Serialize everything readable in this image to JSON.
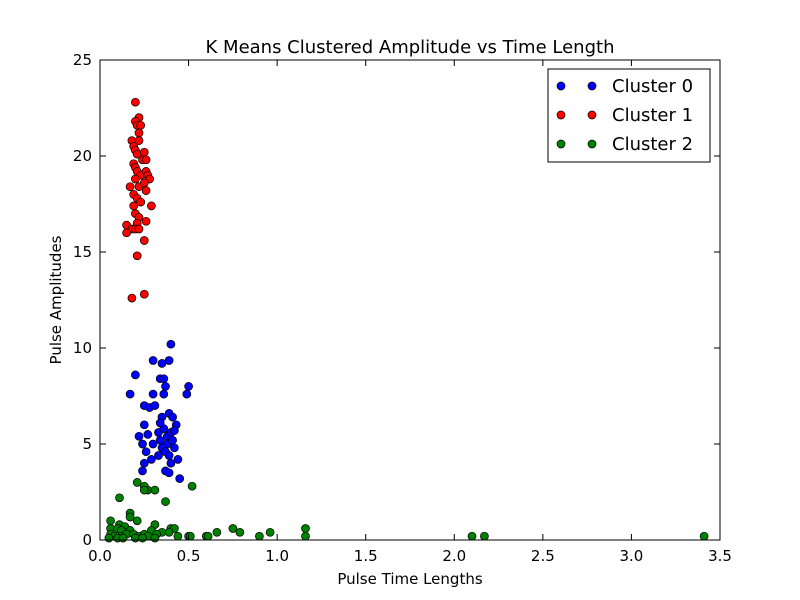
{
  "chart_data": {
    "type": "scatter",
    "title": "K Means Clustered Amplitude vs Time Length",
    "xlabel": "Pulse Time Lengths",
    "ylabel": "Pulse Amplitudes",
    "xlim": [
      0,
      3.5
    ],
    "ylim": [
      0,
      25
    ],
    "xticks": [
      0.0,
      0.5,
      1.0,
      1.5,
      2.0,
      2.5,
      3.0,
      3.5
    ],
    "xtick_labels": [
      "0.0",
      "0.5",
      "1.0",
      "1.5",
      "2.0",
      "2.5",
      "3.0",
      "3.5"
    ],
    "yticks": [
      0,
      5,
      10,
      15,
      20,
      25
    ],
    "ytick_labels": [
      "0",
      "5",
      "10",
      "15",
      "20",
      "25"
    ],
    "grid": false,
    "legend_position": "top-right",
    "series": [
      {
        "name": "Cluster 0",
        "color": "#0000ff",
        "points": [
          [
            0.2,
            8.6
          ],
          [
            0.17,
            7.6
          ],
          [
            0.3,
            9.35
          ],
          [
            0.35,
            9.2
          ],
          [
            0.39,
            9.35
          ],
          [
            0.4,
            10.2
          ],
          [
            0.34,
            8.4
          ],
          [
            0.36,
            8.4
          ],
          [
            0.37,
            8.0
          ],
          [
            0.36,
            7.6
          ],
          [
            0.3,
            7.6
          ],
          [
            0.5,
            8.0
          ],
          [
            0.49,
            7.6
          ],
          [
            0.25,
            7.0
          ],
          [
            0.28,
            6.9
          ],
          [
            0.31,
            7.0
          ],
          [
            0.35,
            6.4
          ],
          [
            0.39,
            6.6
          ],
          [
            0.41,
            6.4
          ],
          [
            0.43,
            6.0
          ],
          [
            0.22,
            5.4
          ],
          [
            0.27,
            5.5
          ],
          [
            0.25,
            6.0
          ],
          [
            0.24,
            5.0
          ],
          [
            0.26,
            4.6
          ],
          [
            0.3,
            5.0
          ],
          [
            0.33,
            5.6
          ],
          [
            0.34,
            5.2
          ],
          [
            0.36,
            5.8
          ],
          [
            0.38,
            5.4
          ],
          [
            0.38,
            5.0
          ],
          [
            0.4,
            5.6
          ],
          [
            0.41,
            5.2
          ],
          [
            0.42,
            4.8
          ],
          [
            0.35,
            4.8
          ],
          [
            0.37,
            4.6
          ],
          [
            0.39,
            4.4
          ],
          [
            0.4,
            4.0
          ],
          [
            0.44,
            4.2
          ],
          [
            0.29,
            4.2
          ],
          [
            0.33,
            4.4
          ],
          [
            0.25,
            4.0
          ],
          [
            0.24,
            3.6
          ],
          [
            0.37,
            3.6
          ],
          [
            0.39,
            3.5
          ],
          [
            0.45,
            3.2
          ],
          [
            0.34,
            6.1
          ],
          [
            0.42,
            5.7
          ]
        ]
      },
      {
        "name": "Cluster 1",
        "color": "#ff0000",
        "points": [
          [
            0.2,
            22.8
          ],
          [
            0.22,
            22.0
          ],
          [
            0.2,
            21.8
          ],
          [
            0.21,
            21.6
          ],
          [
            0.23,
            21.6
          ],
          [
            0.22,
            21.2
          ],
          [
            0.22,
            20.8
          ],
          [
            0.18,
            20.8
          ],
          [
            0.19,
            20.5
          ],
          [
            0.2,
            20.3
          ],
          [
            0.21,
            20.1
          ],
          [
            0.25,
            20.2
          ],
          [
            0.24,
            19.8
          ],
          [
            0.26,
            19.8
          ],
          [
            0.19,
            19.6
          ],
          [
            0.2,
            19.4
          ],
          [
            0.21,
            19.2
          ],
          [
            0.23,
            19.0
          ],
          [
            0.26,
            19.2
          ],
          [
            0.27,
            19.0
          ],
          [
            0.28,
            18.8
          ],
          [
            0.2,
            18.8
          ],
          [
            0.17,
            18.4
          ],
          [
            0.22,
            18.4
          ],
          [
            0.25,
            18.6
          ],
          [
            0.26,
            18.2
          ],
          [
            0.19,
            18.0
          ],
          [
            0.21,
            17.8
          ],
          [
            0.23,
            17.6
          ],
          [
            0.19,
            17.4
          ],
          [
            0.29,
            17.4
          ],
          [
            0.2,
            17.0
          ],
          [
            0.22,
            16.8
          ],
          [
            0.26,
            16.6
          ],
          [
            0.21,
            16.5
          ],
          [
            0.15,
            16.4
          ],
          [
            0.18,
            16.2
          ],
          [
            0.2,
            16.2
          ],
          [
            0.22,
            16.2
          ],
          [
            0.15,
            16.0
          ],
          [
            0.25,
            15.6
          ],
          [
            0.21,
            14.8
          ],
          [
            0.25,
            12.8
          ],
          [
            0.18,
            12.6
          ]
        ]
      },
      {
        "name": "Cluster 2",
        "color": "#008000",
        "points": [
          [
            0.11,
            2.2
          ],
          [
            0.21,
            3.0
          ],
          [
            0.25,
            2.8
          ],
          [
            0.27,
            2.6
          ],
          [
            0.31,
            2.6
          ],
          [
            0.25,
            2.6
          ],
          [
            0.52,
            2.8
          ],
          [
            0.37,
            2.0
          ],
          [
            0.17,
            1.4
          ],
          [
            0.17,
            1.2
          ],
          [
            0.06,
            1.0
          ],
          [
            0.21,
            1.0
          ],
          [
            0.31,
            0.8
          ],
          [
            0.11,
            0.8
          ],
          [
            0.14,
            0.7
          ],
          [
            0.06,
            0.6
          ],
          [
            0.1,
            0.6
          ],
          [
            0.12,
            0.5
          ],
          [
            0.17,
            0.5
          ],
          [
            0.4,
            0.6
          ],
          [
            0.42,
            0.6
          ],
          [
            0.29,
            0.5
          ],
          [
            0.35,
            0.4
          ],
          [
            0.39,
            0.4
          ],
          [
            0.06,
            0.3
          ],
          [
            0.08,
            0.2
          ],
          [
            0.12,
            0.2
          ],
          [
            0.15,
            0.3
          ],
          [
            0.19,
            0.3
          ],
          [
            0.22,
            0.2
          ],
          [
            0.25,
            0.3
          ],
          [
            0.27,
            0.2
          ],
          [
            0.32,
            0.3
          ],
          [
            0.44,
            0.2
          ],
          [
            0.5,
            0.2
          ],
          [
            0.51,
            0.2
          ],
          [
            0.05,
            0.1
          ],
          [
            0.1,
            0.1
          ],
          [
            0.13,
            0.1
          ],
          [
            0.2,
            0.1
          ],
          [
            0.24,
            0.1
          ],
          [
            0.31,
            0.1
          ],
          [
            0.6,
            0.2
          ],
          [
            0.61,
            0.2
          ],
          [
            0.66,
            0.4
          ],
          [
            0.75,
            0.6
          ],
          [
            0.79,
            0.4
          ],
          [
            0.9,
            0.2
          ],
          [
            0.96,
            0.4
          ],
          [
            1.16,
            0.6
          ],
          [
            1.16,
            0.2
          ],
          [
            2.1,
            0.2
          ],
          [
            2.17,
            0.2
          ],
          [
            3.41,
            0.2
          ]
        ]
      }
    ]
  }
}
